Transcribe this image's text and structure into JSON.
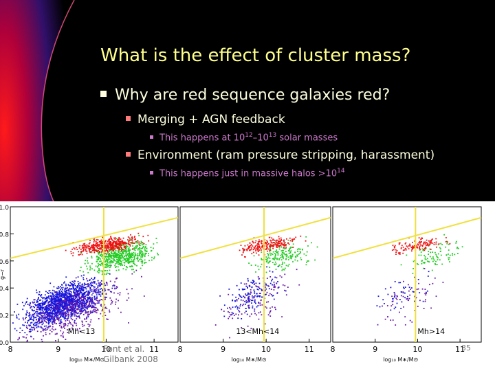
{
  "slide": {
    "title": "What is the effect of cluster mass?",
    "bullet_main": "Why are red sequence galaxies red?",
    "sub1": "Merging + AGN feedback",
    "sub1_note_a": "This happens at 10",
    "sub1_exp1": "12",
    "sub1_note_b": "–10",
    "sub1_exp2": "13",
    "sub1_note_c": " solar masses",
    "sub2": "Environment (ram pressure stripping, harassment)",
    "sub2_note": "This happens just in massive halos >10",
    "sub2_exp": "14",
    "page_number": "35",
    "footer_line1": "Font et al.",
    "footer_line2": "Gilbank 2008"
  },
  "chart_data": [
    {
      "type": "scatter",
      "title": "",
      "xlabel": "log₁₀ M∗/M⊙",
      "ylabel": "g−r",
      "xlim": [
        8,
        11.5
      ],
      "ylim": [
        0.0,
        1.0
      ],
      "xticks": [
        "8",
        "9",
        "10",
        "11"
      ],
      "yticks": [
        "0.0",
        "0.2",
        "0.4",
        "0.6",
        "0.8",
        "1.0"
      ],
      "annotation": "Mh<13",
      "series": [
        "red",
        "green",
        "blue",
        "purple"
      ]
    },
    {
      "type": "scatter",
      "title": "",
      "xlabel": "log₁₀ M∗/M⊙",
      "xlim": [
        8,
        11.5
      ],
      "ylim": [
        0.0,
        1.0
      ],
      "xticks": [
        "8",
        "9",
        "10",
        "11"
      ],
      "annotation": "13<Mh<14",
      "series": [
        "red",
        "green",
        "blue",
        "purple"
      ]
    },
    {
      "type": "scatter",
      "title": "",
      "xlabel": "log₁₀ M∗/M⊙",
      "xlim": [
        8,
        11.5
      ],
      "ylim": [
        0.0,
        1.0
      ],
      "xticks": [
        "8",
        "9",
        "10",
        "11"
      ],
      "annotation": "Mh>14",
      "series": [
        "red",
        "green",
        "blue",
        "purple"
      ]
    }
  ],
  "colors": {
    "title": "#ffff8c",
    "text": "#ffffe0",
    "subnote": "#cc78cc",
    "red": "#ee1111",
    "green": "#22cc22",
    "blue": "#1515dd",
    "purple": "#6a1aa8",
    "fit_line": "#f0e040"
  }
}
